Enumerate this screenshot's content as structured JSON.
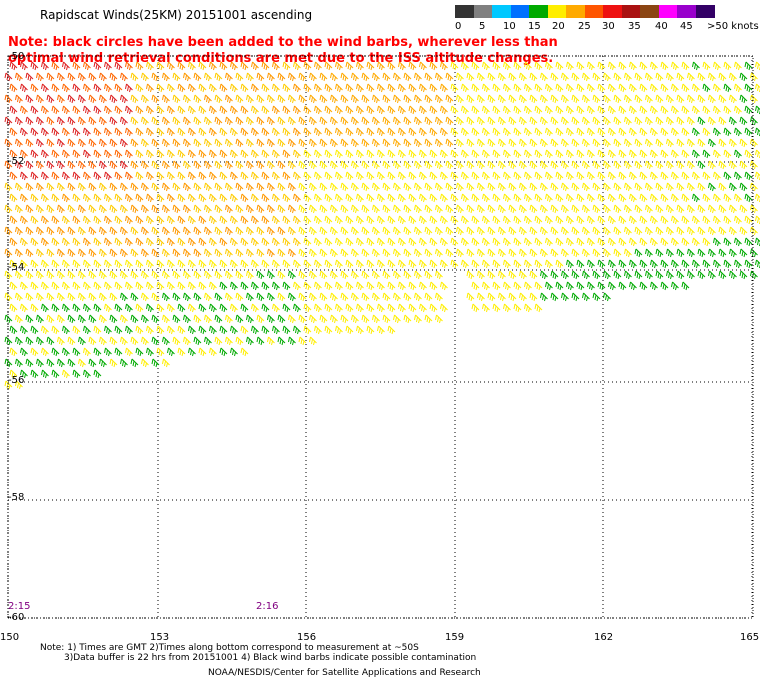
{
  "title": "Rapidscat Winds(25KM) 20151001 ascending",
  "note": "Note: black circles have been added to the wind barbs, wherever less than optimal wind retrieval conditions are met due to the ISS altitude changes.",
  "colorbar": {
    "labels": [
      "0",
      "5",
      "10",
      "15",
      "20",
      "25",
      "30",
      "35",
      "40",
      "45",
      ">50 knots"
    ],
    "colors": [
      "#333333",
      "#808080",
      "#00c8ff",
      "#0070ff",
      "#00aa00",
      "#ffee00",
      "#ffaa00",
      "#ff5500",
      "#ee1111",
      "#aa1111",
      "#8b4513",
      "#ff00ff",
      "#9900cc",
      "#330066"
    ]
  },
  "map": {
    "lat_labels": [
      "-50",
      "-52",
      "-54",
      "-56",
      "-58",
      "-60"
    ],
    "lon_labels": [
      "150",
      "153",
      "156",
      "159",
      "162",
      "165"
    ],
    "time_labels": [
      "2:15",
      "2:16"
    ]
  },
  "footer": {
    "line1": "Note: 1) Times are GMT 2)Times along bottom correspond to measurement at ~50S",
    "line2": "3)Data buffer is 22 hrs from 20151001 4) Black wind barbs indicate possible contamination",
    "credit": "NOAA/NESDIS/Center for Satellite Applications and Research"
  }
}
